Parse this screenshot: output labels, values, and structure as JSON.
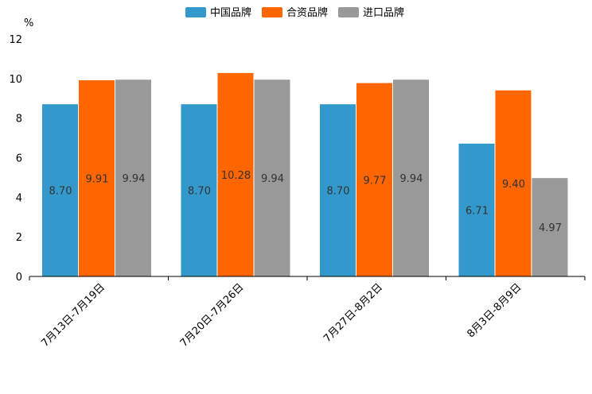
{
  "chart_data": {
    "type": "bar",
    "unit_label": "%",
    "categories": [
      "7月13日-7月19日",
      "7月20日-7月26日",
      "7月27日-8月2日",
      "8月3日-8月9日"
    ],
    "series": [
      {
        "name": "中国品牌",
        "color": "#3399cc",
        "values": [
          8.7,
          8.7,
          8.7,
          6.71
        ]
      },
      {
        "name": "合资品牌",
        "color": "#ff6600",
        "values": [
          9.91,
          10.28,
          9.77,
          9.4
        ]
      },
      {
        "name": "进口品牌",
        "color": "#999999",
        "values": [
          9.94,
          9.94,
          9.94,
          4.97
        ]
      }
    ],
    "ylim": [
      0,
      12
    ],
    "yticks": [
      0,
      2,
      4,
      6,
      8,
      10,
      12
    ],
    "legend_position": "top-center",
    "grid": false
  }
}
